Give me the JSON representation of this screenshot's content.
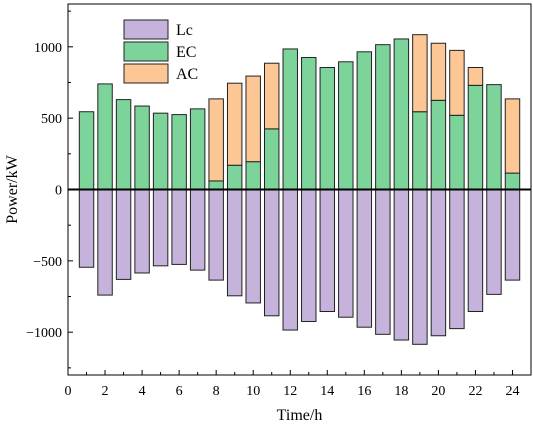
{
  "chart_data": {
    "type": "bar",
    "stacked": true,
    "xlabel": "Time/h",
    "ylabel": "Power/kW",
    "xlim": [
      0,
      25
    ],
    "ylim": [
      -1300,
      1300
    ],
    "xticks": [
      0,
      2,
      4,
      6,
      8,
      10,
      12,
      14,
      16,
      18,
      20,
      22,
      24
    ],
    "yticks": [
      -1000,
      -500,
      0,
      500,
      1000
    ],
    "grid": false,
    "legend_position": "top-left",
    "x": [
      1,
      2,
      3,
      4,
      5,
      6,
      7,
      8,
      9,
      10,
      11,
      12,
      13,
      14,
      15,
      16,
      17,
      18,
      19,
      20,
      21,
      22,
      23,
      24
    ],
    "series": [
      {
        "name": "Lc",
        "color": "#c5b3dc",
        "values": [
          -545,
          -740,
          -630,
          -585,
          -535,
          -525,
          -565,
          -635,
          -745,
          -795,
          -885,
          -985,
          -925,
          -855,
          -895,
          -965,
          -1015,
          -1055,
          -1085,
          -1025,
          -975,
          -855,
          -735,
          -635
        ]
      },
      {
        "name": "EC",
        "color": "#7dd49b",
        "values": [
          545,
          740,
          630,
          585,
          535,
          525,
          565,
          60,
          170,
          195,
          425,
          985,
          925,
          855,
          895,
          965,
          1015,
          1055,
          545,
          625,
          520,
          730,
          735,
          115
        ]
      },
      {
        "name": "AC",
        "color": "#fcc795",
        "values": [
          0,
          0,
          0,
          0,
          0,
          0,
          0,
          575,
          575,
          600,
          460,
          0,
          0,
          0,
          0,
          0,
          0,
          0,
          540,
          400,
          455,
          125,
          0,
          520
        ]
      }
    ]
  }
}
